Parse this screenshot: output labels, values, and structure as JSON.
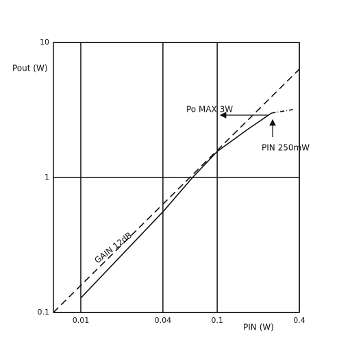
{
  "chart_data": {
    "type": "line",
    "y_label": "Pout (W)",
    "x_label": "PIN (W)",
    "log_x": true,
    "log_y": true,
    "grid": true,
    "xlim": [
      0.0063,
      0.4
    ],
    "xticks": [
      0.01,
      0.04,
      0.1,
      0.4
    ],
    "ylim": [
      0.1,
      10
    ],
    "yticks": [
      0.1,
      1,
      10
    ],
    "series": [
      {
        "color": "#111111",
        "dash": "solid",
        "x": [
          0.01,
          0.04,
          0.066,
          0.1,
          0.167,
          0.25
        ],
        "values": [
          0.128,
          0.557,
          1,
          1.56,
          2.27,
          3
        ]
      },
      {
        "color": "#111111",
        "dash": "dashdot",
        "x": [
          0.25,
          0.37
        ],
        "values": [
          3,
          3.2
        ]
      },
      {
        "color": "#111111",
        "dash": "dashed",
        "x": [
          0.0063,
          0.4
        ],
        "values": [
          0.1,
          6.34
        ]
      }
    ],
    "annotations": [
      "GAIN 12dB",
      "Po MAX 3W",
      "PIN 250mW"
    ]
  }
}
